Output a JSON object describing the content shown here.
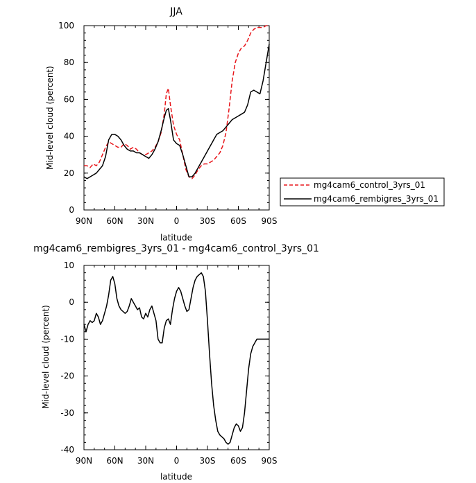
{
  "chart_data": [
    {
      "type": "line",
      "title": "JJA",
      "xlabel": "latitude",
      "ylabel": "Mid-level cloud (percent)",
      "xlim": [
        90,
        -90
      ],
      "ylim": [
        0,
        100
      ],
      "xticks": [
        90,
        60,
        30,
        0,
        -30,
        -60,
        -90
      ],
      "xtick_labels": [
        "90N",
        "60N",
        "30N",
        "0",
        "30S",
        "60S",
        "90S"
      ],
      "yticks": [
        0,
        20,
        40,
        60,
        80,
        100
      ],
      "ytick_labels": [
        "0",
        "20",
        "40",
        "60",
        "80",
        "100"
      ],
      "legend": "right",
      "series": [
        {
          "name": "mg4cam6_control_3yrs_01",
          "color": "#e8161b",
          "style": "dashed",
          "x": [
            90,
            87,
            84,
            81,
            78,
            75,
            72,
            69,
            66,
            63,
            60,
            57,
            54,
            51,
            48,
            45,
            42,
            39,
            36,
            33,
            30,
            27,
            24,
            21,
            18,
            15,
            12,
            10,
            8,
            6,
            3,
            0,
            -3,
            -6,
            -9,
            -12,
            -15,
            -18,
            -21,
            -24,
            -27,
            -30,
            -33,
            -36,
            -39,
            -42,
            -45,
            -48,
            -51,
            -54,
            -57,
            -60,
            -63,
            -66,
            -69,
            -72,
            -75,
            -78,
            -81,
            -84,
            -87,
            -90
          ],
          "y": [
            24,
            24,
            23,
            25,
            24,
            26,
            30,
            34,
            37,
            36,
            35,
            34,
            34,
            36,
            35,
            33,
            34,
            33,
            31,
            30,
            30,
            31,
            32,
            34,
            37,
            42,
            52,
            63,
            66,
            57,
            46,
            41,
            38,
            30,
            22,
            18,
            17,
            19,
            22,
            24,
            25,
            25,
            26,
            27,
            29,
            31,
            35,
            42,
            55,
            70,
            80,
            85,
            88,
            89,
            92,
            96,
            98,
            99,
            99,
            99,
            100,
            100
          ]
        },
        {
          "name": "mg4cam6_rembigres_3yrs_01",
          "color": "#000000",
          "style": "solid",
          "x": [
            90,
            87,
            84,
            81,
            78,
            75,
            72,
            69,
            66,
            63,
            60,
            57,
            54,
            51,
            48,
            45,
            42,
            39,
            36,
            33,
            30,
            27,
            24,
            21,
            18,
            15,
            12,
            10,
            8,
            6,
            3,
            0,
            -3,
            -6,
            -9,
            -12,
            -15,
            -18,
            -21,
            -24,
            -27,
            -30,
            -33,
            -36,
            -39,
            -42,
            -45,
            -48,
            -51,
            -54,
            -57,
            -60,
            -63,
            -66,
            -69,
            -72,
            -75,
            -78,
            -81,
            -84,
            -87,
            -90
          ],
          "y": [
            18,
            17,
            18,
            19,
            20,
            22,
            24,
            29,
            38,
            41,
            41,
            40,
            38,
            35,
            33,
            32,
            32,
            31,
            31,
            30,
            29,
            28,
            30,
            33,
            37,
            43,
            50,
            54,
            55,
            49,
            38,
            36,
            35,
            30,
            24,
            18,
            18,
            20,
            23,
            26,
            29,
            32,
            35,
            38,
            41,
            42,
            43,
            45,
            47,
            49,
            50,
            51,
            52,
            53,
            57,
            64,
            65,
            64,
            63,
            70,
            80,
            90
          ]
        }
      ]
    },
    {
      "type": "line",
      "title": "mg4cam6_rembigres_3yrs_01 - mg4cam6_control_3yrs_01",
      "xlabel": "latitude",
      "ylabel": "Mid-level cloud (percent)",
      "xlim": [
        90,
        -90
      ],
      "ylim": [
        -40,
        10
      ],
      "xticks": [
        90,
        60,
        30,
        0,
        -30,
        -60,
        -90
      ],
      "xtick_labels": [
        "90N",
        "60N",
        "30N",
        "0",
        "30S",
        "60S",
        "90S"
      ],
      "yticks": [
        -40,
        -30,
        -20,
        -10,
        0,
        10
      ],
      "ytick_labels": [
        "-40",
        "-30",
        "-20",
        "-10",
        "0",
        "10"
      ],
      "series": [
        {
          "color": "#000000",
          "style": "solid",
          "x": [
            90,
            88,
            86,
            84,
            82,
            80,
            78,
            76,
            74,
            72,
            70,
            68,
            66,
            64,
            62,
            60,
            58,
            56,
            54,
            52,
            50,
            48,
            46,
            44,
            42,
            40,
            38,
            36,
            34,
            32,
            30,
            28,
            26,
            24,
            22,
            20,
            18,
            16,
            14,
            12,
            10,
            8,
            6,
            4,
            2,
            0,
            -2,
            -4,
            -6,
            -8,
            -10,
            -12,
            -14,
            -16,
            -18,
            -20,
            -22,
            -24,
            -26,
            -28,
            -30,
            -32,
            -34,
            -36,
            -38,
            -40,
            -42,
            -44,
            -46,
            -48,
            -50,
            -52,
            -54,
            -56,
            -58,
            -60,
            -62,
            -64,
            -66,
            -68,
            -70,
            -72,
            -74,
            -76,
            -78,
            -80,
            -82,
            -84,
            -86,
            -88,
            -90
          ],
          "y": [
            -6,
            -8,
            -6,
            -5,
            -5.5,
            -5,
            -3,
            -4,
            -6,
            -5,
            -3,
            -1,
            2,
            6,
            7,
            5,
            1,
            -1,
            -2,
            -2.5,
            -3,
            -2.5,
            -1,
            1,
            0,
            -1,
            -2,
            -1.5,
            -4,
            -4.5,
            -3,
            -4,
            -2,
            -1,
            -3,
            -5,
            -10,
            -11,
            -11,
            -7,
            -5,
            -4.5,
            -6,
            -2,
            1,
            3,
            4,
            3,
            1,
            -1,
            -2.5,
            -2,
            1,
            4,
            6,
            7,
            7.5,
            8,
            7,
            3,
            -5,
            -14,
            -22,
            -28,
            -32,
            -35,
            -36,
            -36.5,
            -37,
            -38,
            -38.5,
            -38,
            -36,
            -34,
            -33,
            -33.5,
            -35,
            -34,
            -30,
            -24,
            -18,
            -14,
            -12,
            -11,
            -10,
            -10,
            -10,
            -10,
            -10,
            -10,
            -10
          ]
        }
      ]
    }
  ]
}
